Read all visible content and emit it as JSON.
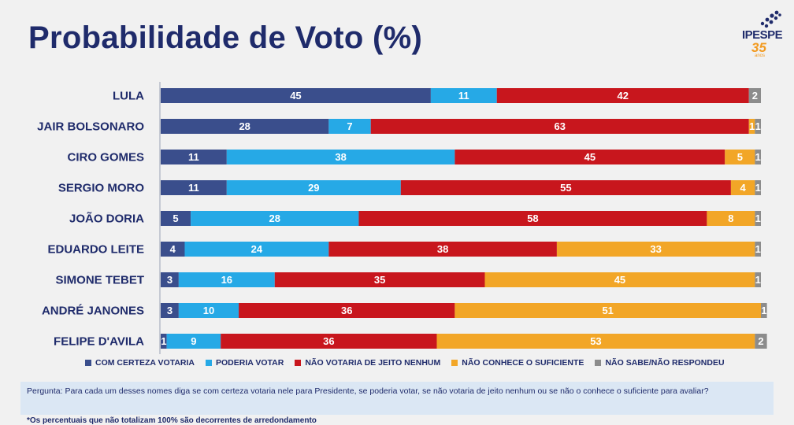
{
  "logo": {
    "text": "IPESPE",
    "years": "35",
    "years_label": "anos"
  },
  "question": "Pergunta:  Para cada um desses nomes diga se com certeza votaria nele para Presidente, se poderia votar, se não votaria de jeito nenhum ou se não o conhece o suficiente para avaliar?",
  "footnote": "*Os percentuais que não totalizam 100% são decorrentes de arredondamento",
  "chart_data": {
    "type": "bar",
    "orientation": "horizontal",
    "stacked": true,
    "title": "Probabilidade de Voto (%)",
    "categories": [
      "LULA",
      "JAIR BOLSONARO",
      "CIRO GOMES",
      "SERGIO MORO",
      "JOÃO DORIA",
      "EDUARDO LEITE",
      "SIMONE  TEBET",
      "ANDRÉ JANONES",
      "FELIPE D'AVILA"
    ],
    "series": [
      {
        "name": "COM CERTEZA VOTARIA",
        "color": "#3a4e8c",
        "values": [
          45,
          28,
          11,
          11,
          5,
          4,
          3,
          3,
          1
        ]
      },
      {
        "name": "PODERIA VOTAR",
        "color": "#26a9e6",
        "values": [
          11,
          7,
          38,
          29,
          28,
          24,
          16,
          10,
          9
        ]
      },
      {
        "name": "NÃO VOTARIA DE JEITO NENHUM",
        "color": "#c8161d",
        "values": [
          42,
          63,
          45,
          55,
          58,
          38,
          35,
          36,
          36
        ]
      },
      {
        "name": "NÃO CONHECE O SUFICIENTE",
        "color": "#f2a627",
        "values": [
          0,
          1,
          5,
          4,
          8,
          33,
          45,
          51,
          53
        ]
      },
      {
        "name": "NÃO SABE/NÃO RESPONDEU",
        "color": "#8c8c8c",
        "values": [
          2,
          1,
          1,
          1,
          1,
          1,
          1,
          1,
          2
        ]
      }
    ],
    "xlim": [
      0,
      100
    ],
    "legend_position": "bottom",
    "grid": false
  }
}
